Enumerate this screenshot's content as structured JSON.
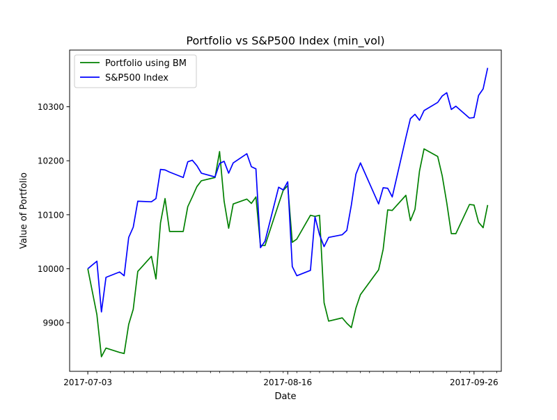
{
  "chart_data": {
    "type": "line",
    "title": "Portfolio vs S&P500 Index (min_vol)",
    "xlabel": "Date",
    "ylabel": "Value of Portfolio",
    "xlim": [
      "2017-06-29",
      "2017-10-02"
    ],
    "ylim": [
      9810,
      10405
    ],
    "x_ticks": [
      "2017-07-03",
      "2017-08-16",
      "2017-09-26"
    ],
    "x_minor_ticks": [
      "2017-07-05",
      "2017-07-08",
      "2017-07-11",
      "2017-07-13",
      "2017-07-16",
      "2017-07-19",
      "2017-07-22",
      "2017-07-24",
      "2017-07-27",
      "2017-07-30",
      "2017-08-01",
      "2017-08-04",
      "2017-08-07",
      "2017-08-10",
      "2017-08-12",
      "2017-08-15",
      "2017-08-18",
      "2017-08-21",
      "2017-08-23",
      "2017-08-26",
      "2017-08-29",
      "2017-09-01",
      "2017-09-03",
      "2017-09-06",
      "2017-09-09",
      "2017-09-12",
      "2017-09-14",
      "2017-09-17",
      "2017-09-20",
      "2017-09-23",
      "2017-09-25",
      "2017-09-28",
      "2017-10-01"
    ],
    "y_ticks": [
      9900,
      10000,
      10100,
      10200,
      10300
    ],
    "legend_position": "top-left",
    "grid": false,
    "x": [
      "2017-07-03",
      "2017-07-05",
      "2017-07-06",
      "2017-07-07",
      "2017-07-10",
      "2017-07-11",
      "2017-07-12",
      "2017-07-13",
      "2017-07-14",
      "2017-07-17",
      "2017-07-18",
      "2017-07-19",
      "2017-07-20",
      "2017-07-21",
      "2017-07-24",
      "2017-07-25",
      "2017-07-26",
      "2017-07-27",
      "2017-07-28",
      "2017-07-31",
      "2017-08-01",
      "2017-08-02",
      "2017-08-03",
      "2017-08-04",
      "2017-08-07",
      "2017-08-08",
      "2017-08-09",
      "2017-08-10",
      "2017-08-11",
      "2017-08-14",
      "2017-08-15",
      "2017-08-16",
      "2017-08-17",
      "2017-08-18",
      "2017-08-21",
      "2017-08-22",
      "2017-08-23",
      "2017-08-24",
      "2017-08-25",
      "2017-08-28",
      "2017-08-29",
      "2017-08-30",
      "2017-08-31",
      "2017-09-01",
      "2017-09-05",
      "2017-09-06",
      "2017-09-07",
      "2017-09-08",
      "2017-09-11",
      "2017-09-12",
      "2017-09-13",
      "2017-09-14",
      "2017-09-15",
      "2017-09-18",
      "2017-09-19",
      "2017-09-20",
      "2017-09-21",
      "2017-09-22",
      "2017-09-25",
      "2017-09-26",
      "2017-09-27",
      "2017-09-28",
      "2017-09-29"
    ],
    "series": [
      {
        "name": "Portfolio using BM",
        "color": "#008000",
        "values": [
          10000,
          9915,
          9837,
          9853,
          9845,
          9843,
          9897,
          9925,
          9995,
          10023,
          9981,
          10085,
          10130,
          10069,
          10069,
          10115,
          10133,
          10152,
          10163,
          10169,
          10217,
          10125,
          10075,
          10120,
          10129,
          10121,
          10133,
          10043,
          10043,
          10120,
          10145,
          10154,
          10049,
          10055,
          10099,
          10097,
          10099,
          9937,
          9903,
          9909,
          9899,
          9891,
          9927,
          9952,
          9998,
          10036,
          10109,
          10108,
          10136,
          10089,
          10110,
          10181,
          10222,
          10208,
          10172,
          10122,
          10065,
          10065,
          10119,
          10118,
          10086,
          10076,
          10118
        ]
      },
      {
        "name": "S&P500 Index",
        "color": "#0000ff",
        "values": [
          10000,
          10014,
          9920,
          9984,
          9994,
          9987,
          10058,
          10077,
          10125,
          10124,
          10130,
          10184,
          10183,
          10179,
          10169,
          10198,
          10201,
          10191,
          10177,
          10170,
          10195,
          10199,
          10177,
          10196,
          10213,
          10189,
          10185,
          10039,
          10051,
          10151,
          10146,
          10161,
          10004,
          9987,
          9997,
          10096,
          10063,
          10041,
          10058,
          10063,
          10071,
          10118,
          10175,
          10196,
          10120,
          10150,
          10149,
          10133,
          10243,
          10278,
          10286,
          10275,
          10293,
          10308,
          10320,
          10326,
          10295,
          10301,
          10279,
          10280,
          10321,
          10333,
          10372
        ]
      }
    ]
  }
}
